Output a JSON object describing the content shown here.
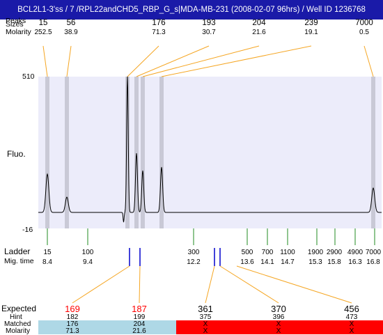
{
  "window": {
    "title": "BCL2L1-3'ss / 7 /RPL22andCHD5_RBP_G_s|MDA-MB-231 (2008-02-07 96hrs) / Well ID 1236768"
  },
  "peaks_header": {
    "label_sizes": "Sizes",
    "label_molarity": "Molarity",
    "overlap_label": "Peaks"
  },
  "peaks": [
    {
      "size": "15",
      "molarity": "252.5"
    },
    {
      "size": "56",
      "molarity": "38.9"
    },
    {
      "size": "176",
      "molarity": "71.3"
    },
    {
      "size": "193",
      "molarity": "30.7"
    },
    {
      "size": "204",
      "molarity": "21.6"
    },
    {
      "size": "239",
      "molarity": "19.1"
    },
    {
      "size": "7000",
      "molarity": "0.5"
    }
  ],
  "electropherogram": {
    "y_label": "Fluo.",
    "y_max_label": "510",
    "y_min_label": "-16",
    "plot_bg": "#ececfa",
    "band_color": "#c9c9d6"
  },
  "ladder": {
    "label": "Ladder",
    "mig_label": "Mig. time",
    "sizes": [
      "15",
      "100",
      "300",
      "500",
      "700",
      "1100",
      "1900",
      "2900",
      "4900",
      "7000"
    ],
    "mig_times": [
      "8.4",
      "9.4",
      "12.2",
      "13.6",
      "14.1",
      "14.7",
      "15.3",
      "15.8",
      "16.3",
      "16.8"
    ]
  },
  "expected_table": {
    "label_expected": "Expected",
    "label_hint": "Hint",
    "label_matched": "Matched",
    "label_molarity": "Molarity",
    "columns": [
      {
        "expected": "169",
        "hint": "182",
        "matched": "176",
        "molarity": "71.3",
        "status": "ok"
      },
      {
        "expected": "187",
        "hint": "199",
        "matched": "204",
        "molarity": "21.6",
        "status": "ok"
      },
      {
        "expected": "361",
        "hint": "375",
        "matched": "X",
        "molarity": "X",
        "status": "miss"
      },
      {
        "expected": "370",
        "hint": "396",
        "matched": "X",
        "molarity": "X",
        "status": "miss"
      },
      {
        "expected": "456",
        "hint": "473",
        "matched": "X",
        "molarity": "X",
        "status": "miss"
      }
    ],
    "colors": {
      "ok_bg": "#aed8e6",
      "miss_bg": "#ff0000",
      "expected_red": "#ff0000"
    }
  },
  "colors": {
    "title_bg": "#1a1aa8",
    "connector_orange": "#f5a623",
    "ladder_green": "#228b22",
    "marker_blue": "#0000cc",
    "trace": "#000000"
  }
}
